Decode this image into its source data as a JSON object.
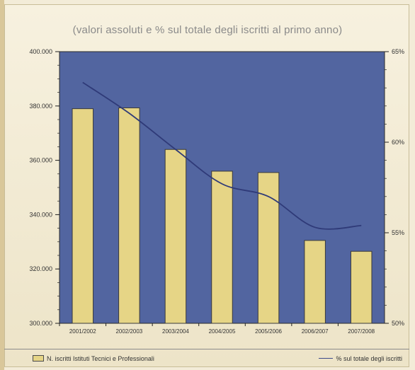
{
  "chart_data": {
    "type": "bar",
    "title": "(valori assoluti e % sul totale degli iscritti al primo anno)",
    "categories": [
      "2001/2002",
      "2002/2003",
      "2003/2004",
      "2004/2005",
      "2005/2006",
      "2006/2007",
      "2007/2008"
    ],
    "series": [
      {
        "name": "N. iscritti Istituti Tecnici e Professionali",
        "type": "bar",
        "axis": "left",
        "values": [
          379000,
          379300,
          364000,
          356000,
          355500,
          330500,
          326500
        ]
      },
      {
        "name": "% sul totale degli iscritti",
        "type": "line",
        "axis": "right",
        "values": [
          63.3,
          61.6,
          59.6,
          57.7,
          57.0,
          55.3,
          55.4
        ]
      }
    ],
    "y_left": {
      "ylim": [
        300000,
        400000
      ],
      "ticks": [
        300000,
        320000,
        340000,
        360000,
        380000,
        400000
      ],
      "tick_labels": [
        "300.000",
        "320.000",
        "340.000",
        "360.000",
        "380.000",
        "400.000"
      ]
    },
    "y_right": {
      "ylim": [
        50,
        65
      ],
      "ticks": [
        50,
        55,
        60,
        65
      ],
      "tick_labels": [
        "50%",
        "55%",
        "60%",
        "65%"
      ]
    },
    "grid": false,
    "legend_position": "bottom",
    "colors": {
      "plot_bg": "#5265a0",
      "bar": "#e6d586",
      "bar_edge": "#3a3a3a",
      "line": "#2f3a78",
      "page_bg": "#f3ecd8"
    }
  }
}
